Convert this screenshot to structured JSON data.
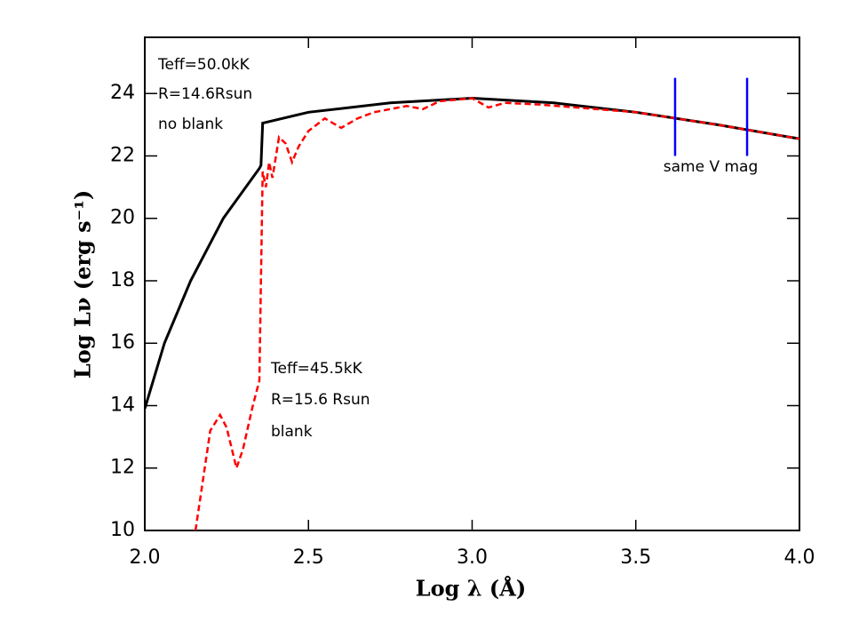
{
  "chart_data": {
    "type": "line",
    "xlabel": "Log   λ  (Å)",
    "ylabel": "Log  Lν  (erg s⁻¹)",
    "xlim": [
      2.0,
      4.0
    ],
    "ylim": [
      10,
      25.8
    ],
    "xticks": [
      {
        "value": 2,
        "label": "2.0"
      },
      2.5,
      {
        "value": 3,
        "label": "3.0"
      },
      3.5,
      {
        "value": 4,
        "label": "4.0"
      }
    ],
    "yticks": [
      10,
      12,
      14,
      16,
      18,
      20,
      22,
      24
    ],
    "series": [
      {
        "color": "#000000",
        "dashed": false,
        "x": [
          2.0,
          2.06,
          2.14,
          2.24,
          2.35,
          2.355,
          2.36,
          2.5,
          2.75,
          3.0,
          3.25,
          3.5,
          3.75,
          4.0
        ],
        "values": [
          13.9,
          16,
          18,
          20,
          21.6,
          21.7,
          23.05,
          23.4,
          23.7,
          23.85,
          23.7,
          23.4,
          23.0,
          22.55
        ]
      },
      {
        "color": "#ff0000",
        "dashed": true,
        "x": [
          2.155,
          2.2,
          2.23,
          2.25,
          2.28,
          2.3,
          2.33,
          2.35,
          2.36,
          2.37,
          2.38,
          2.39,
          2.41,
          2.43,
          2.45,
          2.47,
          2.5,
          2.55,
          2.6,
          2.65,
          2.7,
          2.8,
          2.85,
          2.9,
          3.0,
          3.05,
          3.1,
          3.2,
          3.5,
          3.75,
          4.0
        ],
        "values": [
          10,
          13.2,
          13.7,
          13.3,
          12.0,
          12.6,
          14.0,
          14.8,
          21.5,
          21.0,
          21.8,
          21.3,
          22.6,
          22.4,
          21.8,
          22.3,
          22.8,
          23.2,
          22.9,
          23.2,
          23.4,
          23.6,
          23.5,
          23.75,
          23.85,
          23.55,
          23.7,
          23.65,
          23.4,
          23.0,
          22.55
        ]
      }
    ],
    "vlines": {
      "x": [
        3.62,
        3.84
      ],
      "ymin": 22.0,
      "ymax": 24.5,
      "color": "#0000ff"
    },
    "annotations": [
      "Teff=50.0kK",
      "R=14.6Rsun",
      "no blank",
      "Teff=45.5kK",
      "R=15.6 Rsun",
      "blank",
      "same V mag"
    ]
  }
}
